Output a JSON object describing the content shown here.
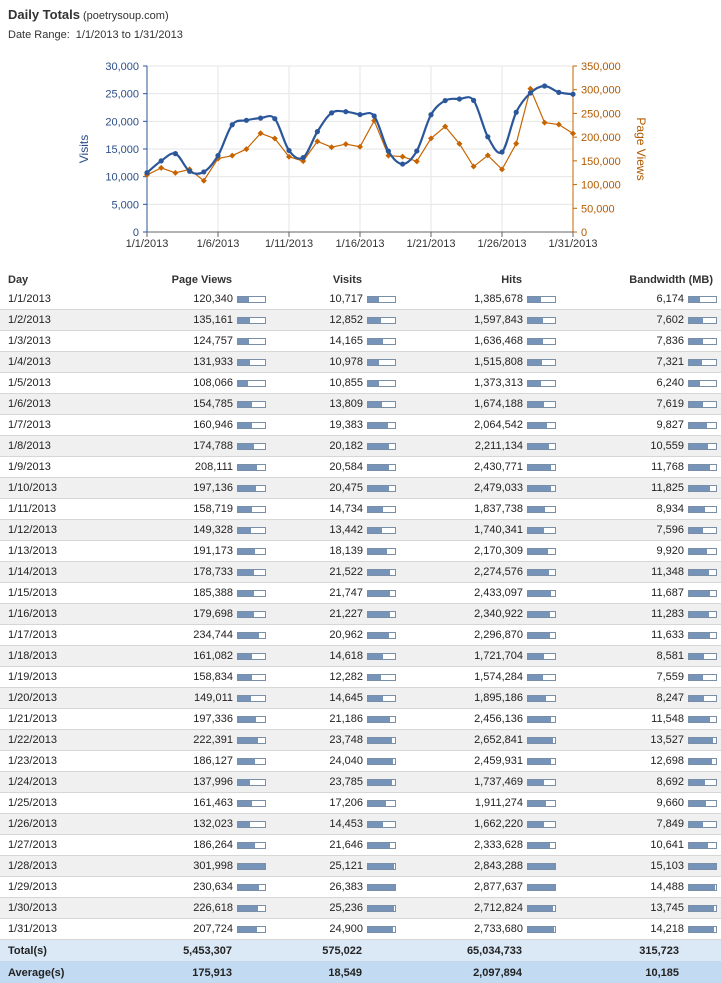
{
  "header": {
    "title": "Daily Totals",
    "domain": "(poetrysoup.com)",
    "date_range_label": "Date Range:",
    "date_range_value": "1/1/2013 to 1/31/2013"
  },
  "colors": {
    "visits": "#2b579a",
    "page_views": "#c86400",
    "bar_fill": "#7694ba",
    "total_row": "#dbe8f6",
    "average_row": "#c2dbf3"
  },
  "chart_data": {
    "type": "line",
    "x_ticks": [
      "1/1/2013",
      "1/6/2013",
      "1/11/2013",
      "1/16/2013",
      "1/21/2013",
      "1/26/2013",
      "1/31/2013"
    ],
    "ylabel_left": "Visits",
    "ylabel_right": "Page Views",
    "yleft_ticks": [
      "0",
      "5,000",
      "10,000",
      "15,000",
      "20,000",
      "25,000",
      "30,000"
    ],
    "yright_ticks": [
      "0",
      "50,000",
      "100,000",
      "150,000",
      "200,000",
      "250,000",
      "300,000",
      "350,000"
    ],
    "yleft_range": [
      0,
      30000
    ],
    "yright_range": [
      0,
      350000
    ],
    "grid": true,
    "series": [
      {
        "name": "Visits",
        "axis": "left",
        "values": [
          10717,
          12852,
          14165,
          10978,
          10855,
          13809,
          19383,
          20182,
          20584,
          20475,
          14734,
          13442,
          18139,
          21522,
          21747,
          21227,
          20962,
          14618,
          12282,
          14645,
          21186,
          23748,
          24040,
          23785,
          17206,
          14453,
          21646,
          25121,
          26383,
          25236,
          24900
        ]
      },
      {
        "name": "Page Views",
        "axis": "right",
        "values": [
          120340,
          135161,
          124757,
          131933,
          108066,
          154785,
          160946,
          174788,
          208111,
          197136,
          158719,
          149328,
          191173,
          178733,
          185388,
          179698,
          234744,
          161082,
          158834,
          149011,
          197336,
          222391,
          186127,
          137996,
          161463,
          132023,
          186264,
          301998,
          230634,
          226618,
          207724
        ]
      }
    ]
  },
  "table": {
    "headers": {
      "day": "Day",
      "page_views": "Page Views",
      "visits": "Visits",
      "hits": "Hits",
      "bandwidth": "Bandwidth (MB)"
    },
    "max": {
      "page_views": 301998,
      "visits": 26383,
      "hits": 2877637,
      "bandwidth": 15103
    },
    "rows": [
      {
        "day": "1/1/2013",
        "page_views": "120,340",
        "visits": "10,717",
        "hits": "1,385,678",
        "bandwidth": "6,174"
      },
      {
        "day": "1/2/2013",
        "page_views": "135,161",
        "visits": "12,852",
        "hits": "1,597,843",
        "bandwidth": "7,602"
      },
      {
        "day": "1/3/2013",
        "page_views": "124,757",
        "visits": "14,165",
        "hits": "1,636,468",
        "bandwidth": "7,836"
      },
      {
        "day": "1/4/2013",
        "page_views": "131,933",
        "visits": "10,978",
        "hits": "1,515,808",
        "bandwidth": "7,321"
      },
      {
        "day": "1/5/2013",
        "page_views": "108,066",
        "visits": "10,855",
        "hits": "1,373,313",
        "bandwidth": "6,240"
      },
      {
        "day": "1/6/2013",
        "page_views": "154,785",
        "visits": "13,809",
        "hits": "1,674,188",
        "bandwidth": "7,619"
      },
      {
        "day": "1/7/2013",
        "page_views": "160,946",
        "visits": "19,383",
        "hits": "2,064,542",
        "bandwidth": "9,827"
      },
      {
        "day": "1/8/2013",
        "page_views": "174,788",
        "visits": "20,182",
        "hits": "2,211,134",
        "bandwidth": "10,559"
      },
      {
        "day": "1/9/2013",
        "page_views": "208,111",
        "visits": "20,584",
        "hits": "2,430,771",
        "bandwidth": "11,768"
      },
      {
        "day": "1/10/2013",
        "page_views": "197,136",
        "visits": "20,475",
        "hits": "2,479,033",
        "bandwidth": "11,825"
      },
      {
        "day": "1/11/2013",
        "page_views": "158,719",
        "visits": "14,734",
        "hits": "1,837,738",
        "bandwidth": "8,934"
      },
      {
        "day": "1/12/2013",
        "page_views": "149,328",
        "visits": "13,442",
        "hits": "1,740,341",
        "bandwidth": "7,596"
      },
      {
        "day": "1/13/2013",
        "page_views": "191,173",
        "visits": "18,139",
        "hits": "2,170,309",
        "bandwidth": "9,920"
      },
      {
        "day": "1/14/2013",
        "page_views": "178,733",
        "visits": "21,522",
        "hits": "2,274,576",
        "bandwidth": "11,348"
      },
      {
        "day": "1/15/2013",
        "page_views": "185,388",
        "visits": "21,747",
        "hits": "2,433,097",
        "bandwidth": "11,687"
      },
      {
        "day": "1/16/2013",
        "page_views": "179,698",
        "visits": "21,227",
        "hits": "2,340,922",
        "bandwidth": "11,283"
      },
      {
        "day": "1/17/2013",
        "page_views": "234,744",
        "visits": "20,962",
        "hits": "2,296,870",
        "bandwidth": "11,633"
      },
      {
        "day": "1/18/2013",
        "page_views": "161,082",
        "visits": "14,618",
        "hits": "1,721,704",
        "bandwidth": "8,581"
      },
      {
        "day": "1/19/2013",
        "page_views": "158,834",
        "visits": "12,282",
        "hits": "1,574,284",
        "bandwidth": "7,559"
      },
      {
        "day": "1/20/2013",
        "page_views": "149,011",
        "visits": "14,645",
        "hits": "1,895,186",
        "bandwidth": "8,247"
      },
      {
        "day": "1/21/2013",
        "page_views": "197,336",
        "visits": "21,186",
        "hits": "2,456,136",
        "bandwidth": "11,548"
      },
      {
        "day": "1/22/2013",
        "page_views": "222,391",
        "visits": "23,748",
        "hits": "2,652,841",
        "bandwidth": "13,527"
      },
      {
        "day": "1/23/2013",
        "page_views": "186,127",
        "visits": "24,040",
        "hits": "2,459,931",
        "bandwidth": "12,698"
      },
      {
        "day": "1/24/2013",
        "page_views": "137,996",
        "visits": "23,785",
        "hits": "1,737,469",
        "bandwidth": "8,692"
      },
      {
        "day": "1/25/2013",
        "page_views": "161,463",
        "visits": "17,206",
        "hits": "1,911,274",
        "bandwidth": "9,660"
      },
      {
        "day": "1/26/2013",
        "page_views": "132,023",
        "visits": "14,453",
        "hits": "1,662,220",
        "bandwidth": "7,849"
      },
      {
        "day": "1/27/2013",
        "page_views": "186,264",
        "visits": "21,646",
        "hits": "2,333,628",
        "bandwidth": "10,641"
      },
      {
        "day": "1/28/2013",
        "page_views": "301,998",
        "visits": "25,121",
        "hits": "2,843,288",
        "bandwidth": "15,103"
      },
      {
        "day": "1/29/2013",
        "page_views": "230,634",
        "visits": "26,383",
        "hits": "2,877,637",
        "bandwidth": "14,488"
      },
      {
        "day": "1/30/2013",
        "page_views": "226,618",
        "visits": "25,236",
        "hits": "2,712,824",
        "bandwidth": "13,745"
      },
      {
        "day": "1/31/2013",
        "page_views": "207,724",
        "visits": "24,900",
        "hits": "2,733,680",
        "bandwidth": "14,218"
      }
    ],
    "totals": {
      "label": "Total(s)",
      "page_views": "5,453,307",
      "visits": "575,022",
      "hits": "65,034,733",
      "bandwidth": "315,723"
    },
    "averages": {
      "label": "Average(s)",
      "page_views": "175,913",
      "visits": "18,549",
      "hits": "2,097,894",
      "bandwidth": "10,185"
    }
  }
}
